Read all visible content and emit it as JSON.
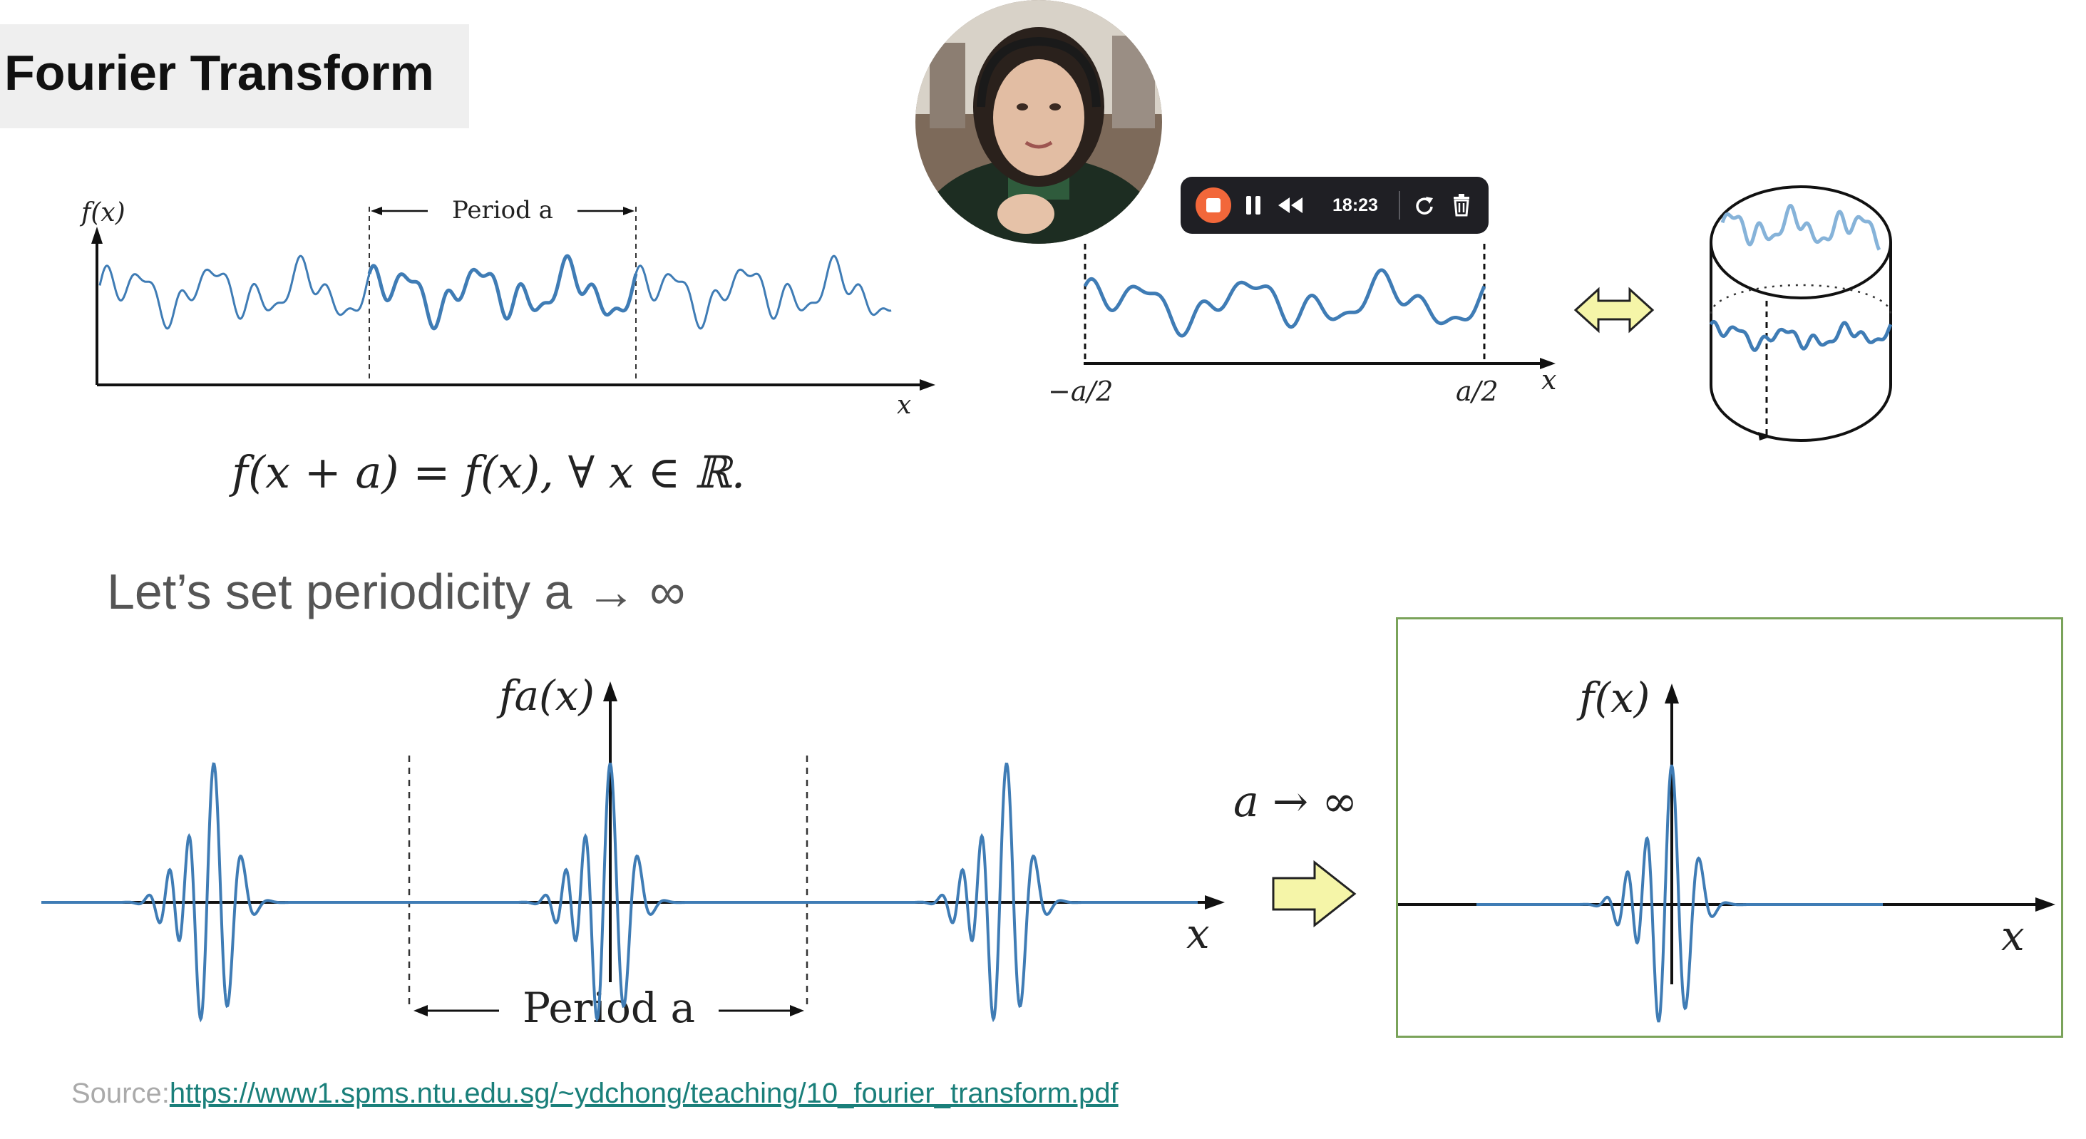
{
  "slide": {
    "title": "Fourier Transform",
    "top_figure": {
      "y_label": "f(x)",
      "x_label": "x",
      "period_label": "Period a",
      "equation": "f(x + a) = f(x),    ∀ x ∈ ℝ."
    },
    "middle_figure": {
      "left_bound": "−a/2",
      "right_bound": "a/2",
      "x_label": "x"
    },
    "heading": "Let’s set periodicity a → ∞",
    "bottom_left_figure": {
      "y_label": "fa(x)",
      "x_label": "x",
      "period_label": "Period a"
    },
    "limit_label": "a → ∞",
    "bottom_right_figure": {
      "y_label": "f(x)",
      "x_label": "x"
    },
    "source": {
      "prefix": "Source:",
      "url": "https://www1.spms.ntu.edu.sg/~ydchong/teaching/10_fourier_transform.pdf"
    }
  },
  "recorder": {
    "elapsed": "18:23",
    "stop_color": "#f2673a"
  },
  "colors": {
    "curve": "#3f7cb5",
    "curve_light": "#86b3d9",
    "arrow_fill": "#f5f5a8",
    "frame": "#7aa35a"
  }
}
